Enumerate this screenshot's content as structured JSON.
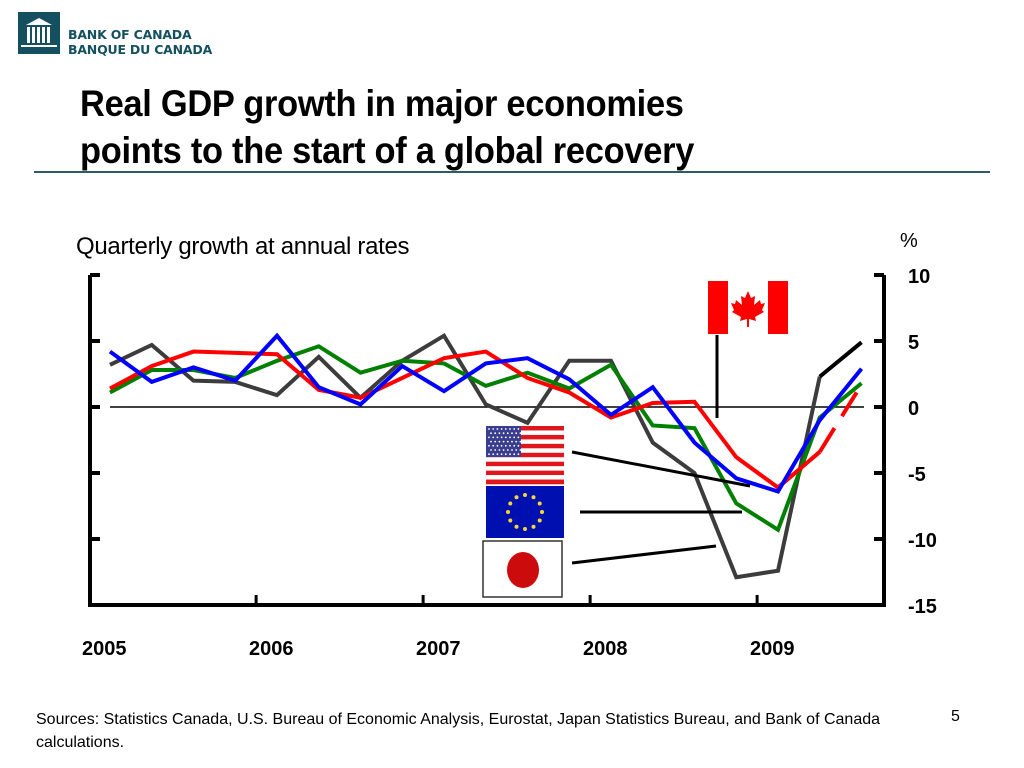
{
  "header": {
    "logo_line1": "BANK OF CANADA",
    "logo_line2": "BANQUE DU CANADA",
    "logo_color": "#14505f",
    "title_line1": "Real GDP growth in major economies",
    "title_line2": "points to the start of a global recovery"
  },
  "footer": {
    "sources": "Sources: Statistics Canada, U.S. Bureau of Economic Analysis, Eurostat, Japan Statistics Bureau, and Bank of Canada calculations.",
    "page_number": "5"
  },
  "chart_data": {
    "type": "line",
    "title": "",
    "subtitle": "Quarterly growth at annual rates",
    "ylabel": "%",
    "xlabel": "",
    "ylim": [
      -15,
      10
    ],
    "y_ticks": [
      10,
      5,
      0,
      -5,
      -10,
      -15
    ],
    "y_tick_labels": [
      "10",
      "5",
      "0",
      "-5",
      "-10",
      "-15"
    ],
    "y_axis_side": "right",
    "x_tick_labels": [
      "2005",
      "2006",
      "2007",
      "2008",
      "2009"
    ],
    "grid": false,
    "zero_line": true,
    "legend": "flags with leader lines",
    "x": [
      "2005Q1",
      "2005Q2",
      "2005Q3",
      "2005Q4",
      "2006Q1",
      "2006Q2",
      "2006Q3",
      "2006Q4",
      "2007Q1",
      "2007Q2",
      "2007Q3",
      "2007Q4",
      "2008Q1",
      "2008Q2",
      "2008Q3",
      "2008Q4",
      "2009Q1",
      "2009Q2",
      "2009Q3"
    ],
    "series": [
      {
        "name": "Canada",
        "color": "#ff0000",
        "flag": "canada",
        "dashed_from_index": 17,
        "values": [
          1.4,
          3.1,
          4.2,
          4.1,
          4.0,
          1.3,
          0.7,
          2.2,
          3.7,
          4.2,
          2.2,
          1.1,
          -0.8,
          0.3,
          0.4,
          -3.8,
          -6.1,
          -3.4,
          1.7
        ]
      },
      {
        "name": "United States",
        "color": "#0000ff",
        "flag": "usa",
        "values": [
          4.2,
          1.9,
          3.0,
          2.0,
          5.4,
          1.5,
          0.2,
          3.1,
          1.2,
          3.3,
          3.7,
          2.1,
          -0.6,
          1.5,
          -2.7,
          -5.4,
          -6.4,
          -1.0,
          2.9
        ]
      },
      {
        "name": "Euro area",
        "color": "#008000",
        "flag": "eu",
        "values": [
          1.1,
          2.8,
          2.8,
          2.2,
          3.5,
          4.6,
          2.6,
          3.5,
          3.3,
          1.6,
          2.6,
          1.4,
          3.2,
          -1.4,
          -1.6,
          -7.3,
          -9.3,
          -0.8,
          1.8
        ]
      },
      {
        "name": "Japan",
        "color": "#3c3c3c",
        "flag": "japan",
        "last_segment_color": "#000000",
        "values": [
          3.2,
          4.7,
          2.0,
          1.9,
          0.9,
          3.8,
          0.7,
          3.5,
          5.4,
          0.2,
          -1.2,
          3.5,
          3.5,
          -2.7,
          -5.0,
          -12.9,
          -12.4,
          2.3,
          4.9
        ]
      }
    ]
  }
}
